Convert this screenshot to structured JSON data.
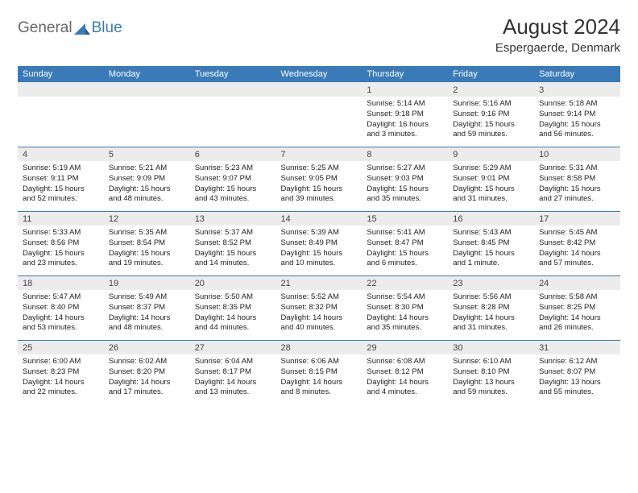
{
  "logo": {
    "general": "General",
    "blue": "Blue"
  },
  "title": "August 2024",
  "location": "Espergaerde, Denmark",
  "colors": {
    "header_bg": "#3a7ab8",
    "header_text": "#ffffff",
    "daynum_bg": "#ececec",
    "border": "#3a7ab8",
    "text": "#222222"
  },
  "day_names": [
    "Sunday",
    "Monday",
    "Tuesday",
    "Wednesday",
    "Thursday",
    "Friday",
    "Saturday"
  ],
  "weeks": [
    {
      "nums": [
        "",
        "",
        "",
        "",
        "1",
        "2",
        "3"
      ],
      "details": [
        "",
        "",
        "",
        "",
        "Sunrise: 5:14 AM\nSunset: 9:18 PM\nDaylight: 16 hours and 3 minutes.",
        "Sunrise: 5:16 AM\nSunset: 9:16 PM\nDaylight: 15 hours and 59 minutes.",
        "Sunrise: 5:18 AM\nSunset: 9:14 PM\nDaylight: 15 hours and 56 minutes."
      ]
    },
    {
      "nums": [
        "4",
        "5",
        "6",
        "7",
        "8",
        "9",
        "10"
      ],
      "details": [
        "Sunrise: 5:19 AM\nSunset: 9:11 PM\nDaylight: 15 hours and 52 minutes.",
        "Sunrise: 5:21 AM\nSunset: 9:09 PM\nDaylight: 15 hours and 48 minutes.",
        "Sunrise: 5:23 AM\nSunset: 9:07 PM\nDaylight: 15 hours and 43 minutes.",
        "Sunrise: 5:25 AM\nSunset: 9:05 PM\nDaylight: 15 hours and 39 minutes.",
        "Sunrise: 5:27 AM\nSunset: 9:03 PM\nDaylight: 15 hours and 35 minutes.",
        "Sunrise: 5:29 AM\nSunset: 9:01 PM\nDaylight: 15 hours and 31 minutes.",
        "Sunrise: 5:31 AM\nSunset: 8:58 PM\nDaylight: 15 hours and 27 minutes."
      ]
    },
    {
      "nums": [
        "11",
        "12",
        "13",
        "14",
        "15",
        "16",
        "17"
      ],
      "details": [
        "Sunrise: 5:33 AM\nSunset: 8:56 PM\nDaylight: 15 hours and 23 minutes.",
        "Sunrise: 5:35 AM\nSunset: 8:54 PM\nDaylight: 15 hours and 19 minutes.",
        "Sunrise: 5:37 AM\nSunset: 8:52 PM\nDaylight: 15 hours and 14 minutes.",
        "Sunrise: 5:39 AM\nSunset: 8:49 PM\nDaylight: 15 hours and 10 minutes.",
        "Sunrise: 5:41 AM\nSunset: 8:47 PM\nDaylight: 15 hours and 6 minutes.",
        "Sunrise: 5:43 AM\nSunset: 8:45 PM\nDaylight: 15 hours and 1 minute.",
        "Sunrise: 5:45 AM\nSunset: 8:42 PM\nDaylight: 14 hours and 57 minutes."
      ]
    },
    {
      "nums": [
        "18",
        "19",
        "20",
        "21",
        "22",
        "23",
        "24"
      ],
      "details": [
        "Sunrise: 5:47 AM\nSunset: 8:40 PM\nDaylight: 14 hours and 53 minutes.",
        "Sunrise: 5:49 AM\nSunset: 8:37 PM\nDaylight: 14 hours and 48 minutes.",
        "Sunrise: 5:50 AM\nSunset: 8:35 PM\nDaylight: 14 hours and 44 minutes.",
        "Sunrise: 5:52 AM\nSunset: 8:32 PM\nDaylight: 14 hours and 40 minutes.",
        "Sunrise: 5:54 AM\nSunset: 8:30 PM\nDaylight: 14 hours and 35 minutes.",
        "Sunrise: 5:56 AM\nSunset: 8:28 PM\nDaylight: 14 hours and 31 minutes.",
        "Sunrise: 5:58 AM\nSunset: 8:25 PM\nDaylight: 14 hours and 26 minutes."
      ]
    },
    {
      "nums": [
        "25",
        "26",
        "27",
        "28",
        "29",
        "30",
        "31"
      ],
      "details": [
        "Sunrise: 6:00 AM\nSunset: 8:23 PM\nDaylight: 14 hours and 22 minutes.",
        "Sunrise: 6:02 AM\nSunset: 8:20 PM\nDaylight: 14 hours and 17 minutes.",
        "Sunrise: 6:04 AM\nSunset: 8:17 PM\nDaylight: 14 hours and 13 minutes.",
        "Sunrise: 6:06 AM\nSunset: 8:15 PM\nDaylight: 14 hours and 8 minutes.",
        "Sunrise: 6:08 AM\nSunset: 8:12 PM\nDaylight: 14 hours and 4 minutes.",
        "Sunrise: 6:10 AM\nSunset: 8:10 PM\nDaylight: 13 hours and 59 minutes.",
        "Sunrise: 6:12 AM\nSunset: 8:07 PM\nDaylight: 13 hours and 55 minutes."
      ]
    }
  ]
}
